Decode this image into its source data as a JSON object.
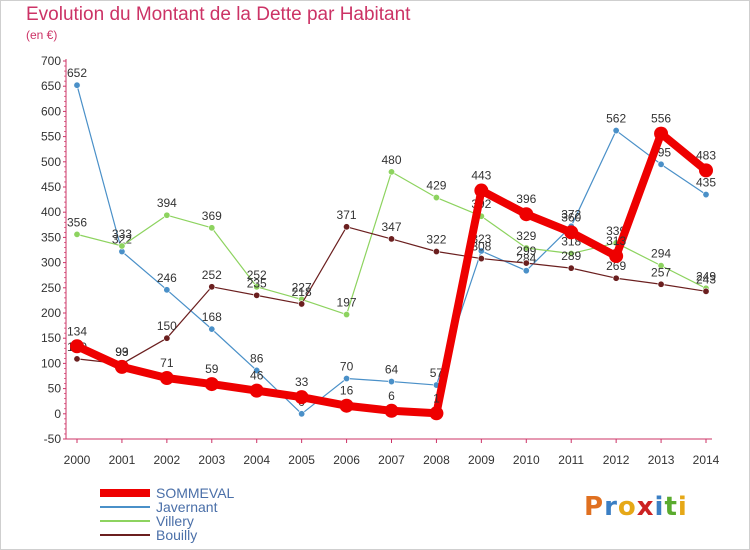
{
  "title": "Evolution du Montant de la Dette par Habitant",
  "unit_label": "(en €)",
  "logo": {
    "text": "Proxiti",
    "letters": [
      "P",
      "r",
      "o",
      "x",
      "i",
      "t",
      "i"
    ],
    "colors": [
      "#e07020",
      "#3b7fc4",
      "#e6a817",
      "#cc2222",
      "#3b7fc4",
      "#5aab2e",
      "#e6a817"
    ]
  },
  "chart_data": {
    "type": "line",
    "x": [
      2000,
      2001,
      2002,
      2003,
      2004,
      2005,
      2006,
      2007,
      2008,
      2009,
      2010,
      2011,
      2012,
      2013,
      2014
    ],
    "x_tick_labels": [
      "2000",
      "2001",
      "2002",
      "2003",
      "2004",
      "2005",
      "2006",
      "2007",
      "2008",
      "2009",
      "2010",
      "2011",
      "2012",
      "2013",
      "2014"
    ],
    "ylim": [
      -50,
      700
    ],
    "y_ticks": [
      -50,
      0,
      50,
      100,
      150,
      200,
      250,
      300,
      350,
      400,
      450,
      500,
      550,
      600,
      650,
      700
    ],
    "y_tick_labels": [
      "-50",
      "0",
      "50",
      "100",
      "150",
      "200",
      "250",
      "300",
      "350",
      "400",
      "450",
      "500",
      "550",
      "600",
      "650",
      "700"
    ],
    "grid": false,
    "legend_position": "bottom-left",
    "series": [
      {
        "name": "Javernant",
        "color": "#4a90c8",
        "values": [
          652,
          322,
          246,
          168,
          86,
          0,
          70,
          64,
          57,
          323,
          284,
          372,
          562,
          495,
          435
        ],
        "labels": [
          "652",
          "322",
          "246",
          "168",
          "86",
          "0",
          "70",
          "64",
          "57",
          "323",
          "284",
          "372",
          "562",
          "495",
          "435"
        ]
      },
      {
        "name": "Villery",
        "color": "#8dd35f",
        "values": [
          356,
          333,
          394,
          369,
          252,
          227,
          197,
          480,
          429,
          392,
          329,
          318,
          339,
          294,
          249
        ],
        "labels": [
          "356",
          "333",
          "394",
          "369",
          "252",
          "227",
          "197",
          "480",
          "429",
          "392",
          "329",
          "318",
          "339",
          "294",
          "249"
        ]
      },
      {
        "name": "Bouilly",
        "color": "#6b1f1f",
        "values": [
          109,
          99,
          150,
          252,
          235,
          218,
          371,
          347,
          322,
          308,
          299,
          289,
          269,
          257,
          243
        ],
        "labels": [
          "109",
          "99",
          "150",
          "252",
          "235",
          "218",
          "371",
          "347",
          "322",
          "308",
          "299",
          "289",
          "269",
          "257",
          "243"
        ]
      },
      {
        "name": "SOMMEVAL",
        "color": "#ee0000",
        "values": [
          134,
          93,
          71,
          59,
          46,
          33,
          16,
          6,
          1,
          443,
          396,
          360,
          313,
          556,
          483
        ],
        "labels": [
          "134",
          "93",
          "71",
          "59",
          "46",
          "33",
          "16",
          "6",
          "1",
          "443",
          "396",
          "360",
          "313",
          "556",
          "483"
        ]
      }
    ],
    "legend_order": [
      "SOMMEVAL",
      "Javernant",
      "Villery",
      "Bouilly"
    ]
  }
}
